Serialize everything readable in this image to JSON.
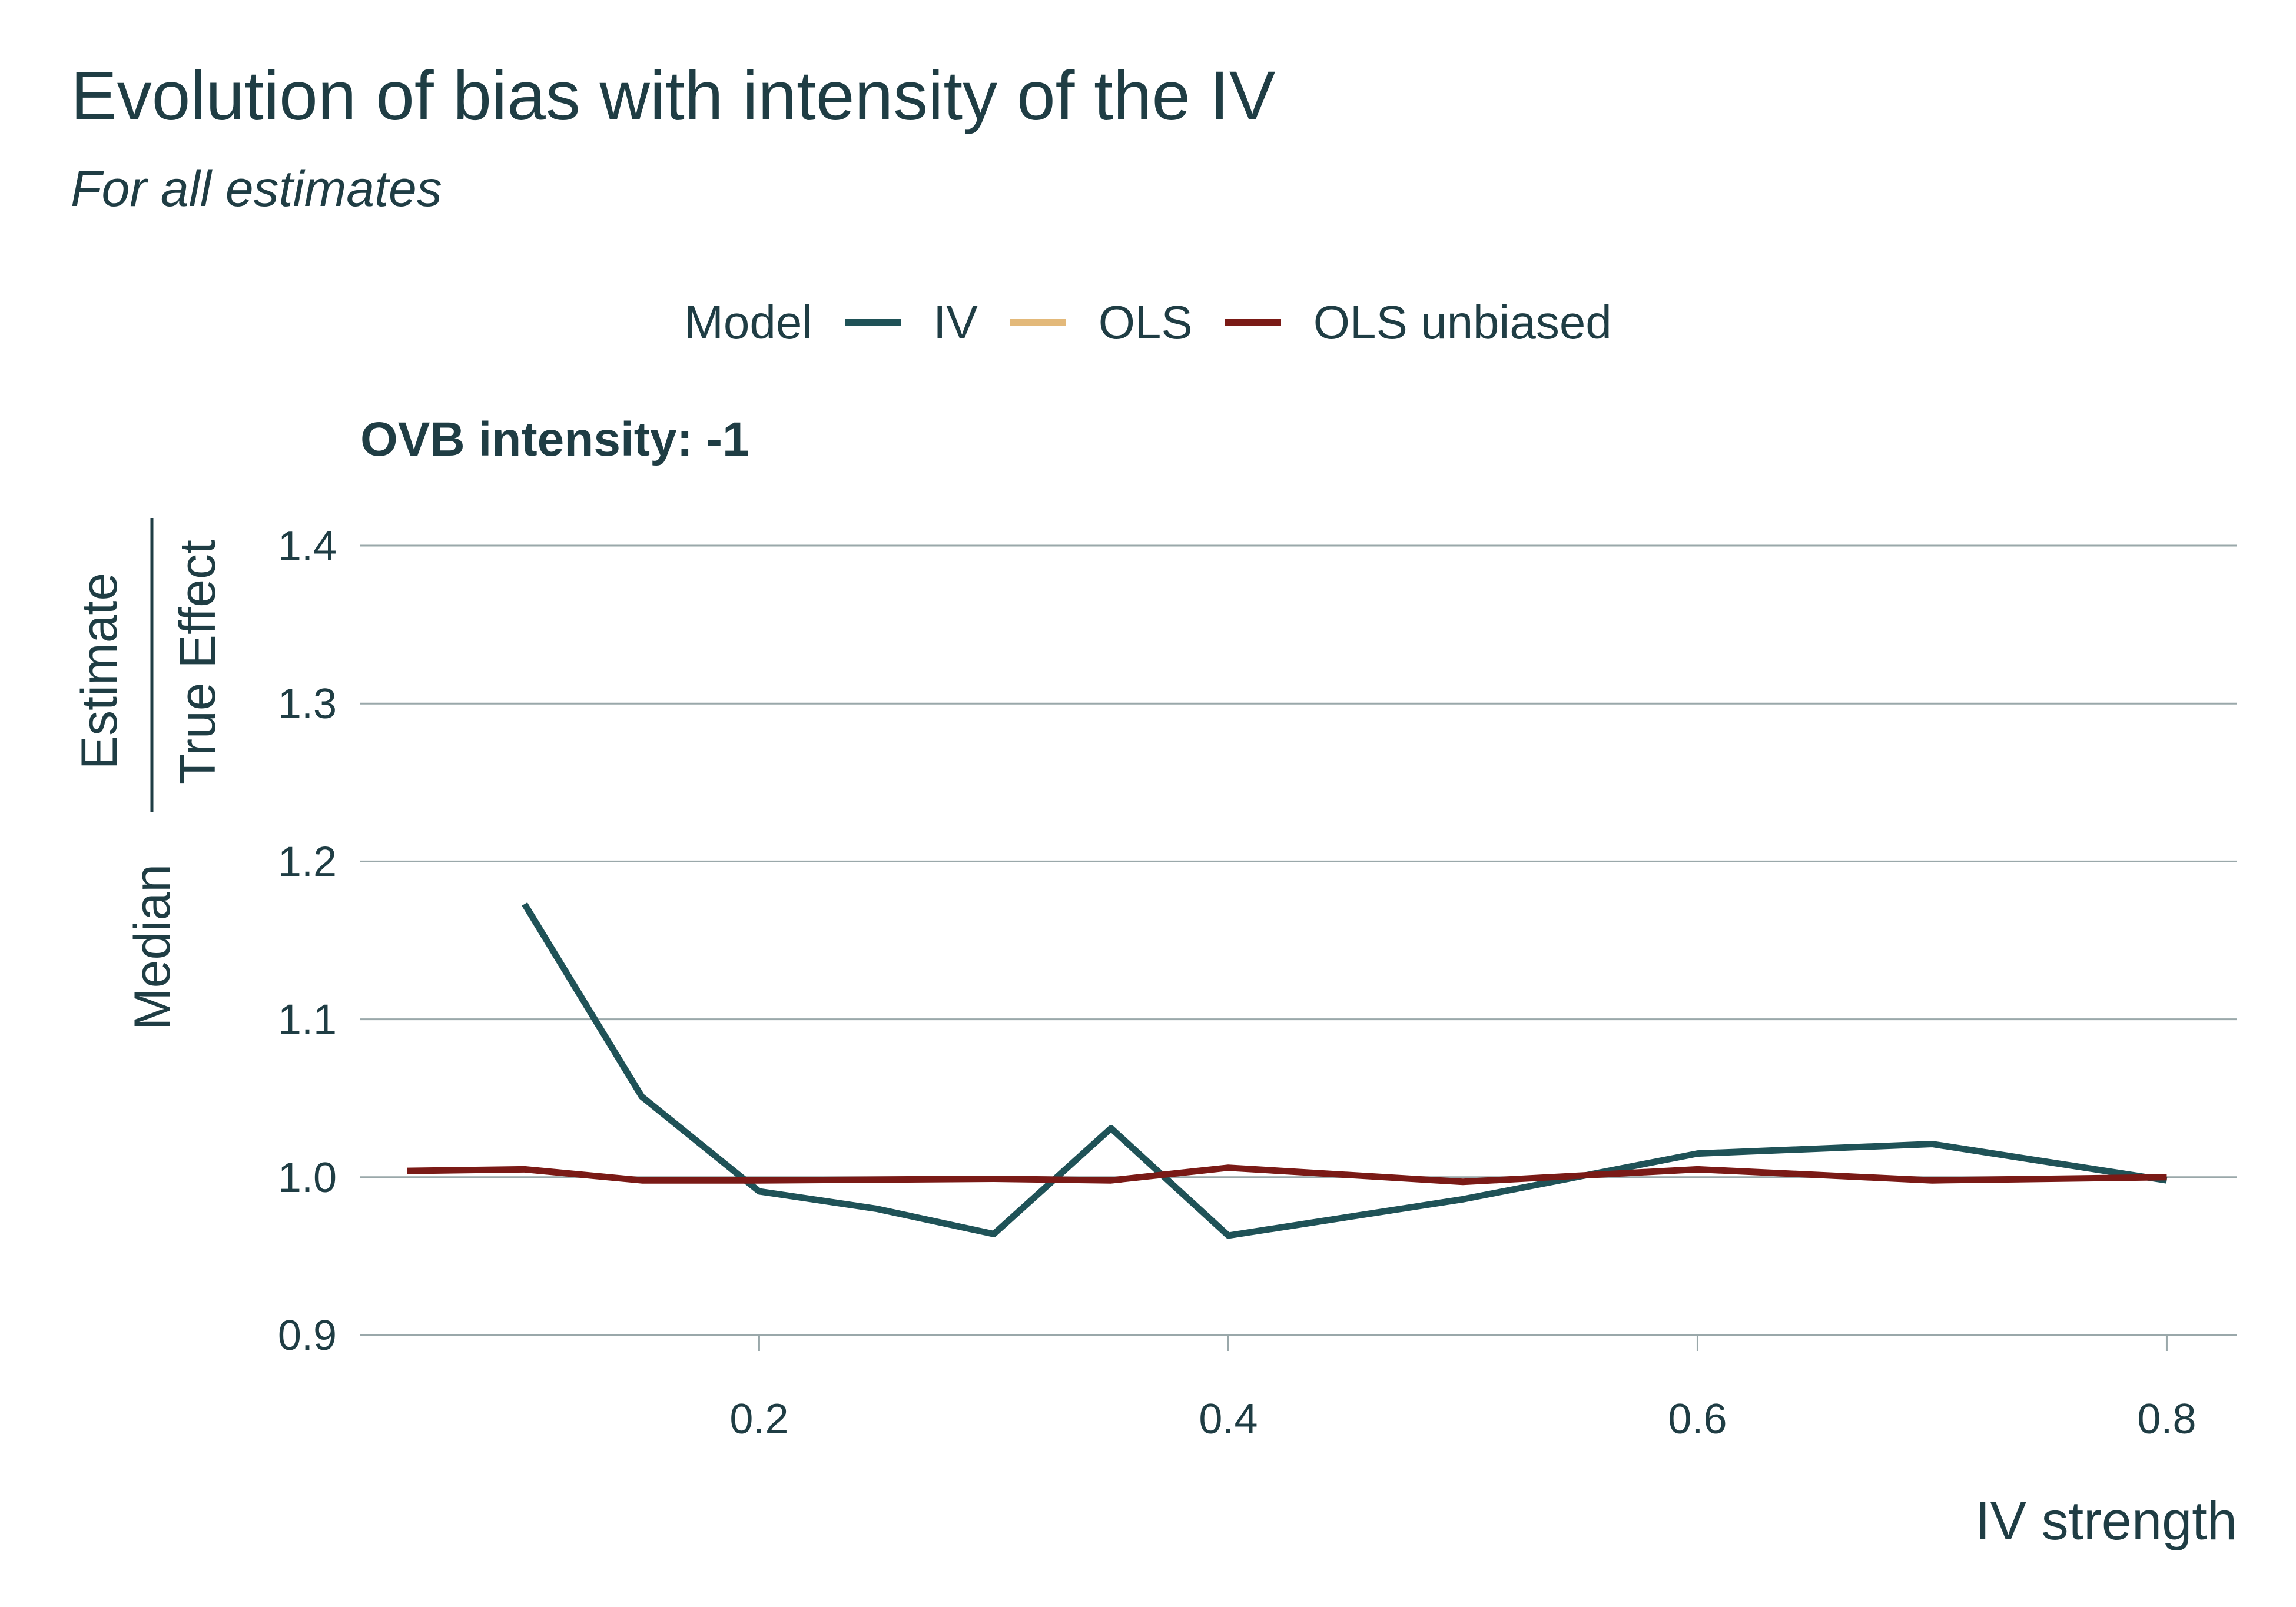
{
  "title": "Evolution of bias with intensity of the IV",
  "subtitle": "For all estimates",
  "legend": {
    "title": "Model",
    "items": [
      {
        "label": "IV",
        "color": "#1f5257"
      },
      {
        "label": "OLS",
        "color": "#e3b97a"
      },
      {
        "label": "OLS unbiased",
        "color": "#7a1a16"
      }
    ]
  },
  "facet_label": "OVB intensity: -1",
  "chart_data": {
    "type": "line",
    "title": "Evolution of bias with intensity of the IV",
    "subtitle": "For all estimates",
    "xlabel": "IV strength",
    "ylabel_prefix": "Median",
    "ylabel_numerator": "Estimate",
    "ylabel_denominator": "True Effect",
    "xlim": [
      0.03,
      0.83
    ],
    "ylim": [
      0.9,
      1.4
    ],
    "xticks": [
      0.2,
      0.4,
      0.6,
      0.8
    ],
    "xtick_labels": [
      "0.2",
      "0.4",
      "0.6",
      "0.8"
    ],
    "yticks": [
      0.9,
      1.0,
      1.1,
      1.2,
      1.3,
      1.4
    ],
    "ytick_labels": [
      "0.9",
      "1.0",
      "1.1",
      "1.2",
      "1.3",
      "1.4"
    ],
    "grid": "horizontal",
    "legend_position": "top",
    "series": [
      {
        "name": "IV",
        "color": "#1f5257",
        "x": [
          0.1,
          0.15,
          0.2,
          0.25,
          0.3,
          0.35,
          0.4,
          0.5,
          0.6,
          0.7,
          0.8
        ],
        "y": [
          1.173,
          1.051,
          0.991,
          0.98,
          0.964,
          1.031,
          0.963,
          0.986,
          1.015,
          1.021,
          0.998
        ]
      },
      {
        "name": "OLS",
        "color": "#e3b97a",
        "x": [],
        "y": []
      },
      {
        "name": "OLS unbiased",
        "color": "#7a1a16",
        "x": [
          0.05,
          0.1,
          0.15,
          0.2,
          0.3,
          0.35,
          0.4,
          0.5,
          0.6,
          0.7,
          0.8
        ],
        "y": [
          1.004,
          1.005,
          0.998,
          0.998,
          0.999,
          0.998,
          1.006,
          0.997,
          1.005,
          0.998,
          1.0
        ]
      }
    ]
  }
}
